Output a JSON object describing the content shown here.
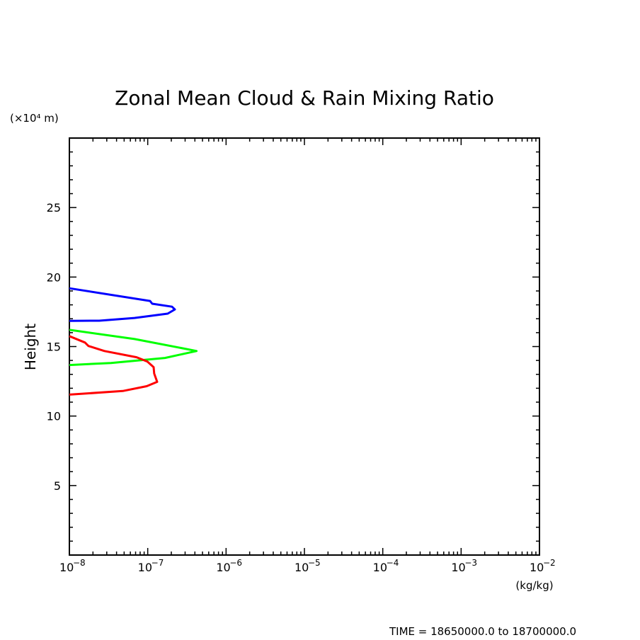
{
  "chart_data": {
    "type": "line",
    "title": "Zonal Mean Cloud & Rain Mixing Ratio",
    "ylabel": "Height",
    "yunit": "(×10⁴ m)",
    "xunit": "(kg/kg)",
    "xscale": "log",
    "xlim": [
      1e-08,
      0.01
    ],
    "ylim": [
      0,
      30
    ],
    "yticks": [
      5,
      10,
      15,
      20,
      25
    ],
    "ytick_labels": [
      "5",
      "10",
      "15",
      "20",
      "25"
    ],
    "xticks": [
      -8,
      -7,
      -6,
      -5,
      -4,
      -3,
      -2
    ],
    "xtick_labels": [
      "10",
      "10",
      "10",
      "10",
      "10",
      "10",
      "10"
    ],
    "xtick_exponents": [
      "−8",
      "−7",
      "−6",
      "−5",
      "−4",
      "−3",
      "−2"
    ],
    "footer": "TIME = 18650000.0 to 18700000.0",
    "series": [
      {
        "name": "blue",
        "color": "#0000ff",
        "x": [
          1e-08,
          1.07e-07,
          1.14e-07,
          2.04e-07,
          2.22e-07,
          1.8e-07,
          6.8e-08,
          2.4e-08,
          1e-08
        ],
        "y": [
          19.19,
          18.28,
          18.08,
          17.87,
          17.67,
          17.37,
          17.06,
          16.86,
          16.85
        ]
      },
      {
        "name": "green",
        "color": "#00ff00",
        "x": [
          1e-08,
          6.8e-08,
          3.8e-07,
          4.2e-07,
          1.66e-07,
          3.4e-08,
          1e-08
        ],
        "y": [
          16.2,
          15.54,
          14.73,
          14.68,
          14.18,
          13.82,
          13.67
        ]
      },
      {
        "name": "red",
        "color": "#ff0000",
        "x": [
          1e-08,
          1.58e-08,
          1.75e-08,
          2.8e-08,
          7.2e-08,
          9.9e-08,
          1.19e-07,
          1.21e-07,
          1.32e-07,
          9.7e-08,
          4.8e-08,
          1e-08
        ],
        "y": [
          15.75,
          15.29,
          15.04,
          14.68,
          14.23,
          13.92,
          13.52,
          13.06,
          12.46,
          12.15,
          11.8,
          11.54
        ]
      }
    ]
  }
}
